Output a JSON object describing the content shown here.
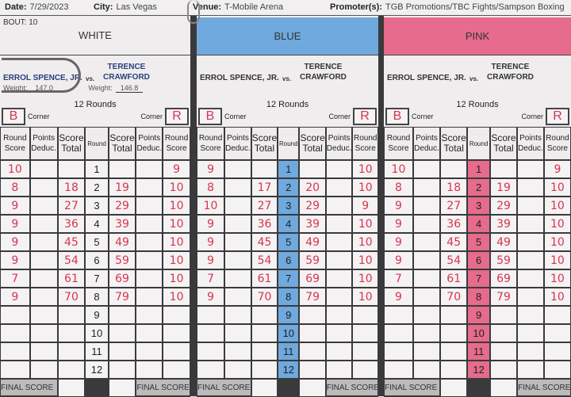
{
  "header": {
    "date_label": "Date:",
    "date": "7/29/2023",
    "city_label": "City:",
    "city": "Las Vegas",
    "venue_label": "Venue:",
    "venue": "T-Mobile Arena",
    "promoter_label": "Promoter(s):",
    "promoter": "TGB Promotions/TBC Fights/Sampson Boxing"
  },
  "bout": {
    "label": "BOUT:",
    "number": "10"
  },
  "weights": {
    "label": "Weight:",
    "blue_corner": "147.0",
    "red_corner": "146.8"
  },
  "columns": {
    "round_score": "Round Score",
    "points_deduc": "Points Deduc.",
    "score_total": "Score Total",
    "round": "Round"
  },
  "labels": {
    "rounds": "12 Rounds",
    "corner": "Corner",
    "b": "B",
    "r": "R",
    "vs": "vs.",
    "final": "FINAL SCORE",
    "fighter_blue": "ERROL SPENCE, JR.",
    "fighter_red_first": "TERENCE",
    "fighter_red_last": "CRAWFORD"
  },
  "colors": {
    "white": "#f0edef",
    "blue": "#6fa9dd",
    "pink": "#e66b8c",
    "ink": "#d8344f"
  },
  "panels": [
    {
      "judge": "WHITE",
      "rows": [
        [
          "10",
          "",
          "",
          "1",
          "",
          "",
          "9"
        ],
        [
          "8",
          "",
          "18",
          "2",
          "19",
          "",
          "10"
        ],
        [
          "9",
          "",
          "27",
          "3",
          "29",
          "",
          "10"
        ],
        [
          "9",
          "",
          "36",
          "4",
          "39",
          "",
          "10"
        ],
        [
          "9",
          "",
          "45",
          "5",
          "49",
          "",
          "10"
        ],
        [
          "9",
          "",
          "54",
          "6",
          "59",
          "",
          "10"
        ],
        [
          "7",
          "",
          "61",
          "7",
          "69",
          "",
          "10"
        ],
        [
          "9",
          "",
          "70",
          "8",
          "79",
          "",
          "10"
        ],
        [
          "",
          "",
          "",
          "9",
          "",
          "",
          ""
        ],
        [
          "",
          "",
          "",
          "10",
          "",
          "",
          ""
        ],
        [
          "",
          "",
          "",
          "11",
          "",
          "",
          ""
        ],
        [
          "",
          "",
          "",
          "12",
          "",
          "",
          ""
        ]
      ]
    },
    {
      "judge": "BLUE",
      "rows": [
        [
          "9",
          "",
          "",
          "1",
          "",
          "",
          "10"
        ],
        [
          "8",
          "",
          "17",
          "2",
          "20",
          "",
          "10"
        ],
        [
          "10",
          "",
          "27",
          "3",
          "29",
          "",
          "9"
        ],
        [
          "9",
          "",
          "36",
          "4",
          "39",
          "",
          "10"
        ],
        [
          "9",
          "",
          "45",
          "5",
          "49",
          "",
          "10"
        ],
        [
          "9",
          "",
          "54",
          "6",
          "59",
          "",
          "10"
        ],
        [
          "7",
          "",
          "61",
          "7",
          "69",
          "",
          "10"
        ],
        [
          "9",
          "",
          "70",
          "8",
          "79",
          "",
          "10"
        ],
        [
          "",
          "",
          "",
          "9",
          "",
          "",
          ""
        ],
        [
          "",
          "",
          "",
          "10",
          "",
          "",
          ""
        ],
        [
          "",
          "",
          "",
          "11",
          "",
          "",
          ""
        ],
        [
          "",
          "",
          "",
          "12",
          "",
          "",
          ""
        ]
      ]
    },
    {
      "judge": "PINK",
      "rows": [
        [
          "10",
          "",
          "",
          "1",
          "",
          "",
          "9"
        ],
        [
          "8",
          "",
          "18",
          "2",
          "19",
          "",
          "10"
        ],
        [
          "9",
          "",
          "27",
          "3",
          "29",
          "",
          "10"
        ],
        [
          "9",
          "",
          "36",
          "4",
          "39",
          "",
          "10"
        ],
        [
          "9",
          "",
          "45",
          "5",
          "49",
          "",
          "10"
        ],
        [
          "9",
          "",
          "54",
          "6",
          "59",
          "",
          "10"
        ],
        [
          "7",
          "",
          "61",
          "7",
          "69",
          "",
          "10"
        ],
        [
          "9",
          "",
          "70",
          "8",
          "79",
          "",
          "10"
        ],
        [
          "",
          "",
          "",
          "9",
          "",
          "",
          ""
        ],
        [
          "",
          "",
          "",
          "10",
          "",
          "",
          ""
        ],
        [
          "",
          "",
          "",
          "11",
          "",
          "",
          ""
        ],
        [
          "",
          "",
          "",
          "12",
          "",
          "",
          ""
        ]
      ]
    }
  ]
}
